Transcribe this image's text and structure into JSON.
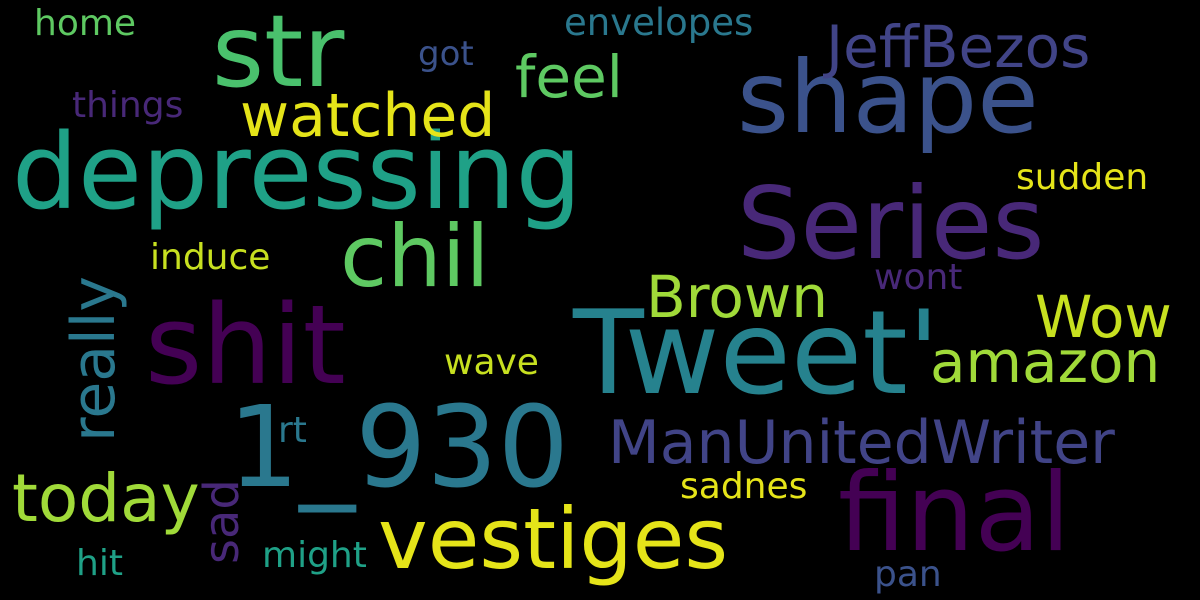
{
  "palette": {
    "background": "#000000",
    "yellow": "#e5e419",
    "yellow_green": "#c7e020",
    "lime": "#a0da39",
    "green": "#5ec962",
    "mint": "#4ac16d",
    "teal_green": "#1fa187",
    "teal": "#26828e",
    "blue_teal": "#2a788e",
    "slate_blue": "#3b528b",
    "indigo": "#414487",
    "purple": "#482878",
    "dark_purple": "#440154"
  },
  "words": {
    "tweet": "Tweet'",
    "depressing": "depressing",
    "shit": "shit",
    "final": "final",
    "series": "Series",
    "shape": "shape",
    "vestiges": "vestiges",
    "num_930": "1_930",
    "str": "str",
    "chil": "chil",
    "manunitedwriter": "ManUnitedWriter",
    "jeffbezos": "JeffBezos",
    "today": "today",
    "amazon": "amazon",
    "brown": "Brown",
    "wow": "Wow",
    "watched": "watched",
    "feel": "feel",
    "really": "really",
    "sad": "sad",
    "envelopes": "envelopes",
    "home": "home",
    "things": "things",
    "got": "got",
    "sudden": "sudden",
    "induce": "induce",
    "wont": "wont",
    "wave": "wave",
    "rt": "rt",
    "sadnes": "sadnes",
    "might": "might",
    "hit": "hit",
    "pan": "pan"
  }
}
